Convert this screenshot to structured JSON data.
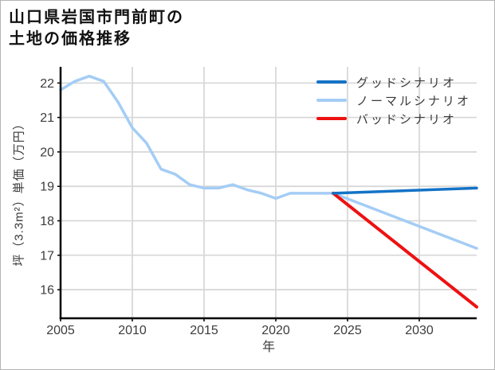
{
  "title": {
    "line1": "山口県岩国市門前町の",
    "line2": "土地の価格推移"
  },
  "legend": {
    "position": "top-right",
    "items": [
      {
        "label": "グッドシナリオ",
        "color": "#1473c6"
      },
      {
        "label": "ノーマルシナリオ",
        "color": "#a4cdf5"
      },
      {
        "label": "バッドシナリオ",
        "color": "#ee1111"
      }
    ]
  },
  "chart_data": {
    "type": "line",
    "title": "山口県岩国市門前町の土地の価格推移",
    "xlabel": "年",
    "ylabel": "坪（3.3m²）単価（万円）",
    "x_range": [
      2005,
      2034
    ],
    "y_range": [
      15.17,
      22.47
    ],
    "x_ticks": [
      2005,
      2010,
      2015,
      2020,
      2025,
      2030
    ],
    "y_ticks": [
      22,
      21,
      20,
      19,
      18,
      17,
      16
    ],
    "grid": true,
    "colors": {
      "grid": "#d9d9d9",
      "axis": "#000000",
      "tick_label": "#3c3c3c"
    },
    "series": [
      {
        "name": "ノーマルシナリオ",
        "color": "#a4cdf5",
        "width": 3.5,
        "x": [
          2005,
          2006,
          2007,
          2008,
          2009,
          2010,
          2011,
          2012,
          2013,
          2014,
          2015,
          2016,
          2017,
          2018,
          2019,
          2020,
          2021,
          2022,
          2023,
          2024,
          2034
        ],
        "y": [
          21.8,
          22.05,
          22.2,
          22.05,
          21.45,
          20.7,
          20.25,
          19.5,
          19.35,
          19.05,
          18.95,
          18.95,
          19.05,
          18.9,
          18.8,
          18.65,
          18.8,
          18.8,
          18.8,
          18.8,
          17.2
        ]
      },
      {
        "name": "バッドシナリオ",
        "color": "#ee1111",
        "width": 4,
        "x": [
          2024,
          2034
        ],
        "y": [
          18.8,
          15.5
        ]
      },
      {
        "name": "グッドシナリオ",
        "color": "#1473c6",
        "width": 3.5,
        "x": [
          2024,
          2034
        ],
        "y": [
          18.8,
          18.95
        ]
      }
    ]
  }
}
